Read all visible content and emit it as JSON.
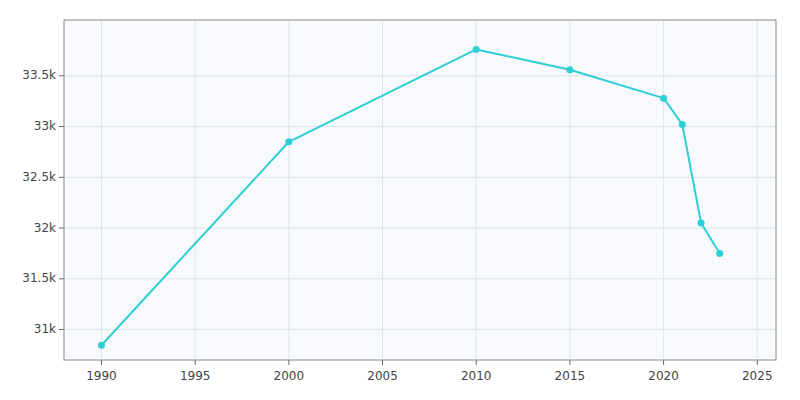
{
  "chart_data": {
    "type": "line",
    "x": [
      1990,
      2000,
      2010,
      2015,
      2020,
      2021,
      2022,
      2023
    ],
    "values": [
      30845,
      32850,
      33760,
      33560,
      33280,
      33020,
      32050,
      31750
    ],
    "color": "#2ECFD4",
    "marker": "circle",
    "xlim": [
      1988,
      2026
    ],
    "ylim": [
      30700,
      34050
    ],
    "xticks": [
      1990,
      1995,
      2000,
      2005,
      2010,
      2015,
      2020,
      2025
    ],
    "yticks": [
      {
        "value": 31000,
        "label": "31k"
      },
      {
        "value": 31500,
        "label": "31.5k"
      },
      {
        "value": 32000,
        "label": "32k"
      },
      {
        "value": 32500,
        "label": "32.5k"
      },
      {
        "value": 33000,
        "label": "33k"
      },
      {
        "value": 33500,
        "label": "33.5k"
      }
    ],
    "grid": true
  }
}
